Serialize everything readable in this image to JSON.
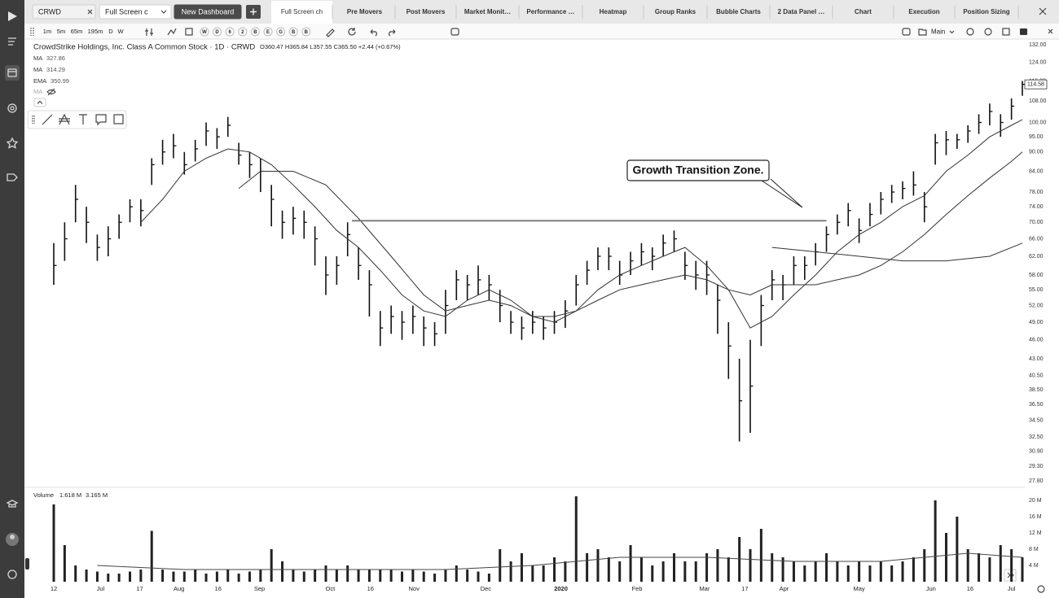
{
  "ui": {
    "tabs": [
      "CRWD",
      "Full Screen c",
      "New Dashboard",
      "Full Screen ch",
      "Pre Movers",
      "Post Movers",
      "Market Monit…",
      "Performance …",
      "Heatmap",
      "Group Ranks",
      "Bubble Charts",
      "2 Data Panel …",
      "Chart",
      "Execution",
      "Position Sizing"
    ],
    "timeframes": [
      "1m",
      "5m",
      "65m",
      "195m",
      "D",
      "W"
    ],
    "studies": [
      "W",
      "D",
      "6",
      "2",
      "B",
      "E",
      "G",
      "B",
      "B"
    ],
    "layout": "Main",
    "symbol_title": "CrowdStrike Holdings, Inc. Class A Common Stock · 1D · CRWD",
    "ohlc": "O360.47 H365.84 L357.55 C365.50 +2.44 (+0.67%)",
    "hidden_indicator": "MA",
    "volume_label": "Volume",
    "volume_values": [
      "1.618 M",
      "3.165 M"
    ]
  },
  "chart_data": [
    {
      "type": "ohlc",
      "log": true,
      "color": "#111111",
      "annotation": "Growth Transition Zone.",
      "horizontal_line": {
        "value": 70.4,
        "x": [
          27.4,
          71
        ]
      },
      "last_price": 114.58,
      "xlim": [
        0,
        89
      ],
      "ylim": [
        27.8,
        132
      ],
      "yticks": [
        {
          "value": 132,
          "label": "132.00"
        },
        {
          "value": 124,
          "label": "124.00"
        },
        {
          "value": 116,
          "label": "116.00"
        },
        {
          "value": 108,
          "label": "108.00"
        },
        {
          "value": 100,
          "label": "100.00"
        },
        {
          "value": 95,
          "label": "95.00"
        },
        {
          "value": 90,
          "label": "90.00"
        },
        {
          "value": 84,
          "label": "84.00"
        },
        {
          "value": 78,
          "label": "78.00"
        },
        {
          "value": 74,
          "label": "74.00"
        },
        {
          "value": 70,
          "label": "70.00"
        },
        {
          "value": 66,
          "label": "66.00"
        },
        {
          "value": 62,
          "label": "62.00"
        },
        {
          "value": 58,
          "label": "58.00"
        },
        {
          "value": 55,
          "label": "55.00"
        },
        {
          "value": 52,
          "label": "52.00"
        },
        {
          "value": 49,
          "label": "49.00"
        },
        {
          "value": 46,
          "label": "46.00"
        },
        {
          "value": 43,
          "label": "43.00"
        },
        {
          "value": 40.5,
          "label": "40.50"
        },
        {
          "value": 38.5,
          "label": "38.50"
        },
        {
          "value": 36.5,
          "label": "36.50"
        },
        {
          "value": 34.5,
          "label": "34.50"
        },
        {
          "value": 32.5,
          "label": "32.50"
        },
        {
          "value": 30.9,
          "label": "30.90"
        },
        {
          "value": 29.3,
          "label": "29.30"
        },
        {
          "value": 27.8,
          "label": "27.80"
        }
      ],
      "x": [
        0,
        1,
        2,
        3,
        4,
        5,
        6,
        7,
        8,
        9,
        10,
        11,
        12,
        13,
        14,
        15,
        16,
        17,
        18,
        19,
        20,
        21,
        22,
        23,
        24,
        25,
        26,
        27,
        28,
        29,
        30,
        31,
        32,
        33,
        34,
        35,
        36,
        37,
        38,
        39,
        40,
        41,
        42,
        43,
        44,
        45,
        46,
        47,
        48,
        49,
        50,
        51,
        52,
        53,
        54,
        55,
        56,
        57,
        58,
        59,
        60,
        61,
        62,
        63,
        64,
        65,
        66,
        67,
        68,
        69,
        70,
        71,
        72,
        73,
        74,
        75,
        76,
        77,
        78,
        79,
        80,
        81,
        82,
        83,
        84,
        85,
        86,
        87,
        88,
        89
      ],
      "high": [
        65,
        70,
        80,
        74,
        67,
        69,
        72,
        76,
        76,
        88,
        94,
        96,
        90,
        94,
        100,
        98,
        102,
        93,
        90,
        88,
        80,
        73,
        74,
        73,
        69,
        62,
        62,
        70,
        64,
        59,
        51,
        52,
        51,
        52,
        50,
        49,
        55,
        59,
        58,
        60,
        58,
        55,
        51,
        50,
        51,
        50,
        51,
        53,
        58,
        61,
        64,
        64,
        61,
        63,
        65,
        64,
        67,
        68,
        63,
        61,
        61,
        56,
        49,
        43,
        46,
        54,
        59,
        58,
        62,
        62,
        65,
        69,
        72,
        75,
        71,
        75,
        78,
        80,
        81,
        84,
        78,
        96,
        97,
        96,
        99,
        103,
        107,
        103,
        109,
        116
      ],
      "low": [
        56,
        61,
        70,
        65,
        61,
        62,
        66,
        70,
        69,
        80,
        86,
        88,
        83,
        87,
        92,
        91,
        95,
        86,
        82,
        78,
        69,
        66,
        67,
        66,
        60,
        54,
        56,
        62,
        57,
        50,
        45,
        47,
        46,
        47,
        45,
        45,
        47,
        53,
        53,
        54,
        53,
        49,
        47,
        46,
        47,
        46,
        47,
        48,
        52,
        56,
        59,
        59,
        56,
        58,
        60,
        59,
        62,
        63,
        57,
        55,
        54,
        47,
        40,
        32,
        33,
        45,
        53,
        53,
        56,
        57,
        60,
        63,
        67,
        69,
        65,
        69,
        72,
        75,
        76,
        77,
        70,
        86,
        89,
        91,
        93,
        96,
        99,
        95,
        101,
        110
      ],
      "close": [
        60,
        66,
        76,
        70,
        64,
        66,
        70,
        74,
        73,
        86,
        90,
        92,
        86,
        91,
        97,
        95,
        99,
        89,
        86,
        84,
        76,
        70,
        71,
        70,
        66,
        58,
        60,
        67,
        60,
        56,
        48,
        50,
        49,
        50,
        48,
        47,
        52,
        57,
        56,
        57,
        56,
        52,
        49,
        48,
        49,
        48,
        49,
        51,
        56,
        59,
        62,
        62,
        58,
        61,
        63,
        62,
        65,
        66,
        60,
        58,
        58,
        53,
        45,
        37,
        39,
        52,
        57,
        56,
        60,
        60,
        63,
        67,
        70,
        73,
        68,
        72,
        76,
        78,
        79,
        80,
        74,
        93,
        94,
        94,
        97,
        100,
        104,
        100,
        106,
        114.58
      ],
      "series": [
        {
          "name": "MA",
          "legend_value": "327.86",
          "color": "#333333",
          "x": [
            8,
            10,
            12,
            14,
            16,
            18,
            20,
            22,
            24,
            26,
            28,
            30,
            32,
            34,
            36,
            38,
            40,
            42,
            44,
            46,
            48,
            50,
            52,
            54,
            56,
            58,
            60,
            62,
            64,
            66,
            68,
            70,
            72,
            74,
            76,
            78,
            80,
            82,
            84,
            86,
            88,
            89
          ],
          "values": [
            70,
            76,
            84,
            88,
            91,
            90,
            86,
            80,
            74,
            68,
            64,
            59,
            54,
            51,
            50,
            53,
            55,
            53,
            50,
            49,
            51,
            55,
            58,
            60,
            62,
            64,
            60,
            55,
            48,
            50,
            54,
            58,
            63,
            67,
            70,
            74,
            77,
            84,
            89,
            95,
            99,
            101
          ]
        },
        {
          "name": "MA",
          "legend_value": "314.29",
          "color": "#333333",
          "x": [
            17,
            19,
            22,
            25,
            28,
            31,
            34,
            36,
            38,
            40,
            42,
            44,
            46,
            48,
            50,
            52,
            54,
            56,
            58,
            60,
            62,
            64,
            66,
            68,
            70,
            72,
            74,
            76,
            78,
            80,
            82,
            84,
            86,
            88,
            89
          ],
          "values": [
            79,
            84,
            84,
            80,
            71,
            62,
            54,
            51,
            52,
            53,
            52,
            50,
            50,
            51,
            53,
            55,
            56,
            57,
            58,
            57,
            55,
            54,
            56,
            56,
            56,
            57,
            58,
            60,
            63,
            67,
            72,
            77,
            82,
            87,
            90
          ]
        },
        {
          "name": "EMA",
          "legend_value": "350.99",
          "color": "#333333",
          "x": [
            66,
            70,
            74,
            78,
            82,
            86,
            89
          ],
          "values": [
            64,
            63,
            62,
            61,
            61,
            62,
            65
          ]
        }
      ]
    },
    {
      "type": "bar",
      "color": "#222222",
      "xlim": [
        0,
        89
      ],
      "ylim": [
        0,
        22
      ],
      "yticks": [
        {
          "value": 20,
          "label": "20 M"
        },
        {
          "value": 16,
          "label": "16 M"
        },
        {
          "value": 12,
          "label": "12 M"
        },
        {
          "value": 8,
          "label": "8 M"
        },
        {
          "value": 4,
          "label": "4 M"
        }
      ],
      "xticks": [
        {
          "value": 0,
          "label": "12"
        },
        {
          "value": 4.3,
          "label": "Jul"
        },
        {
          "value": 7.9,
          "label": "17"
        },
        {
          "value": 11.5,
          "label": "Aug"
        },
        {
          "value": 15.1,
          "label": "16"
        },
        {
          "value": 18.9,
          "label": "Sep"
        },
        {
          "value": 25.4,
          "label": "Oct"
        },
        {
          "value": 29.1,
          "label": "16"
        },
        {
          "value": 33.1,
          "label": "Nov"
        },
        {
          "value": 39.7,
          "label": "Dec"
        },
        {
          "value": 46.6,
          "label": "2020"
        },
        {
          "value": 53.6,
          "label": "Feb"
        },
        {
          "value": 59.8,
          "label": "Mar"
        },
        {
          "value": 63.5,
          "label": "17"
        },
        {
          "value": 67.1,
          "label": "Apr"
        },
        {
          "value": 74,
          "label": "May"
        },
        {
          "value": 80.6,
          "label": "Jun"
        },
        {
          "value": 84.2,
          "label": "16"
        },
        {
          "value": 88,
          "label": "Jul"
        }
      ],
      "x": [
        0,
        1,
        2,
        3,
        4,
        5,
        6,
        7,
        8,
        9,
        10,
        11,
        12,
        13,
        14,
        15,
        16,
        17,
        18,
        19,
        20,
        21,
        22,
        23,
        24,
        25,
        26,
        27,
        28,
        29,
        30,
        31,
        32,
        33,
        34,
        35,
        36,
        37,
        38,
        39,
        40,
        41,
        42,
        43,
        44,
        45,
        46,
        47,
        48,
        49,
        50,
        51,
        52,
        53,
        54,
        55,
        56,
        57,
        58,
        59,
        60,
        61,
        62,
        63,
        64,
        65,
        66,
        67,
        68,
        69,
        70,
        71,
        72,
        73,
        74,
        75,
        76,
        77,
        78,
        79,
        80,
        81,
        82,
        83,
        84,
        85,
        86,
        87,
        88,
        89
      ],
      "values": [
        19,
        9,
        4,
        3,
        2.5,
        2,
        2,
        2.5,
        3,
        12.5,
        3,
        2.5,
        2.5,
        3,
        2,
        2.5,
        3,
        2,
        2.5,
        3,
        8,
        5,
        3,
        2.5,
        3,
        4,
        3,
        4,
        3,
        3,
        3,
        3,
        2.5,
        3,
        2.5,
        2,
        3,
        4,
        3,
        2.5,
        2,
        8,
        5,
        7,
        4,
        4,
        6,
        5,
        21,
        7,
        8,
        6,
        5,
        9,
        6,
        4,
        5,
        7,
        5,
        5,
        7,
        8,
        6,
        11,
        8,
        13,
        7,
        6,
        5,
        4,
        5,
        7,
        5,
        4,
        5,
        4,
        5,
        4,
        5,
        6,
        8,
        20,
        12,
        16,
        8,
        7,
        6,
        9,
        8,
        6
      ],
      "average": {
        "x": [
          4,
          12,
          20,
          28,
          36,
          44,
          52,
          60,
          68,
          76,
          84,
          89
        ],
        "values": [
          4,
          3,
          3,
          3,
          3,
          4,
          6,
          6,
          5,
          5,
          7,
          6
        ]
      }
    }
  ]
}
